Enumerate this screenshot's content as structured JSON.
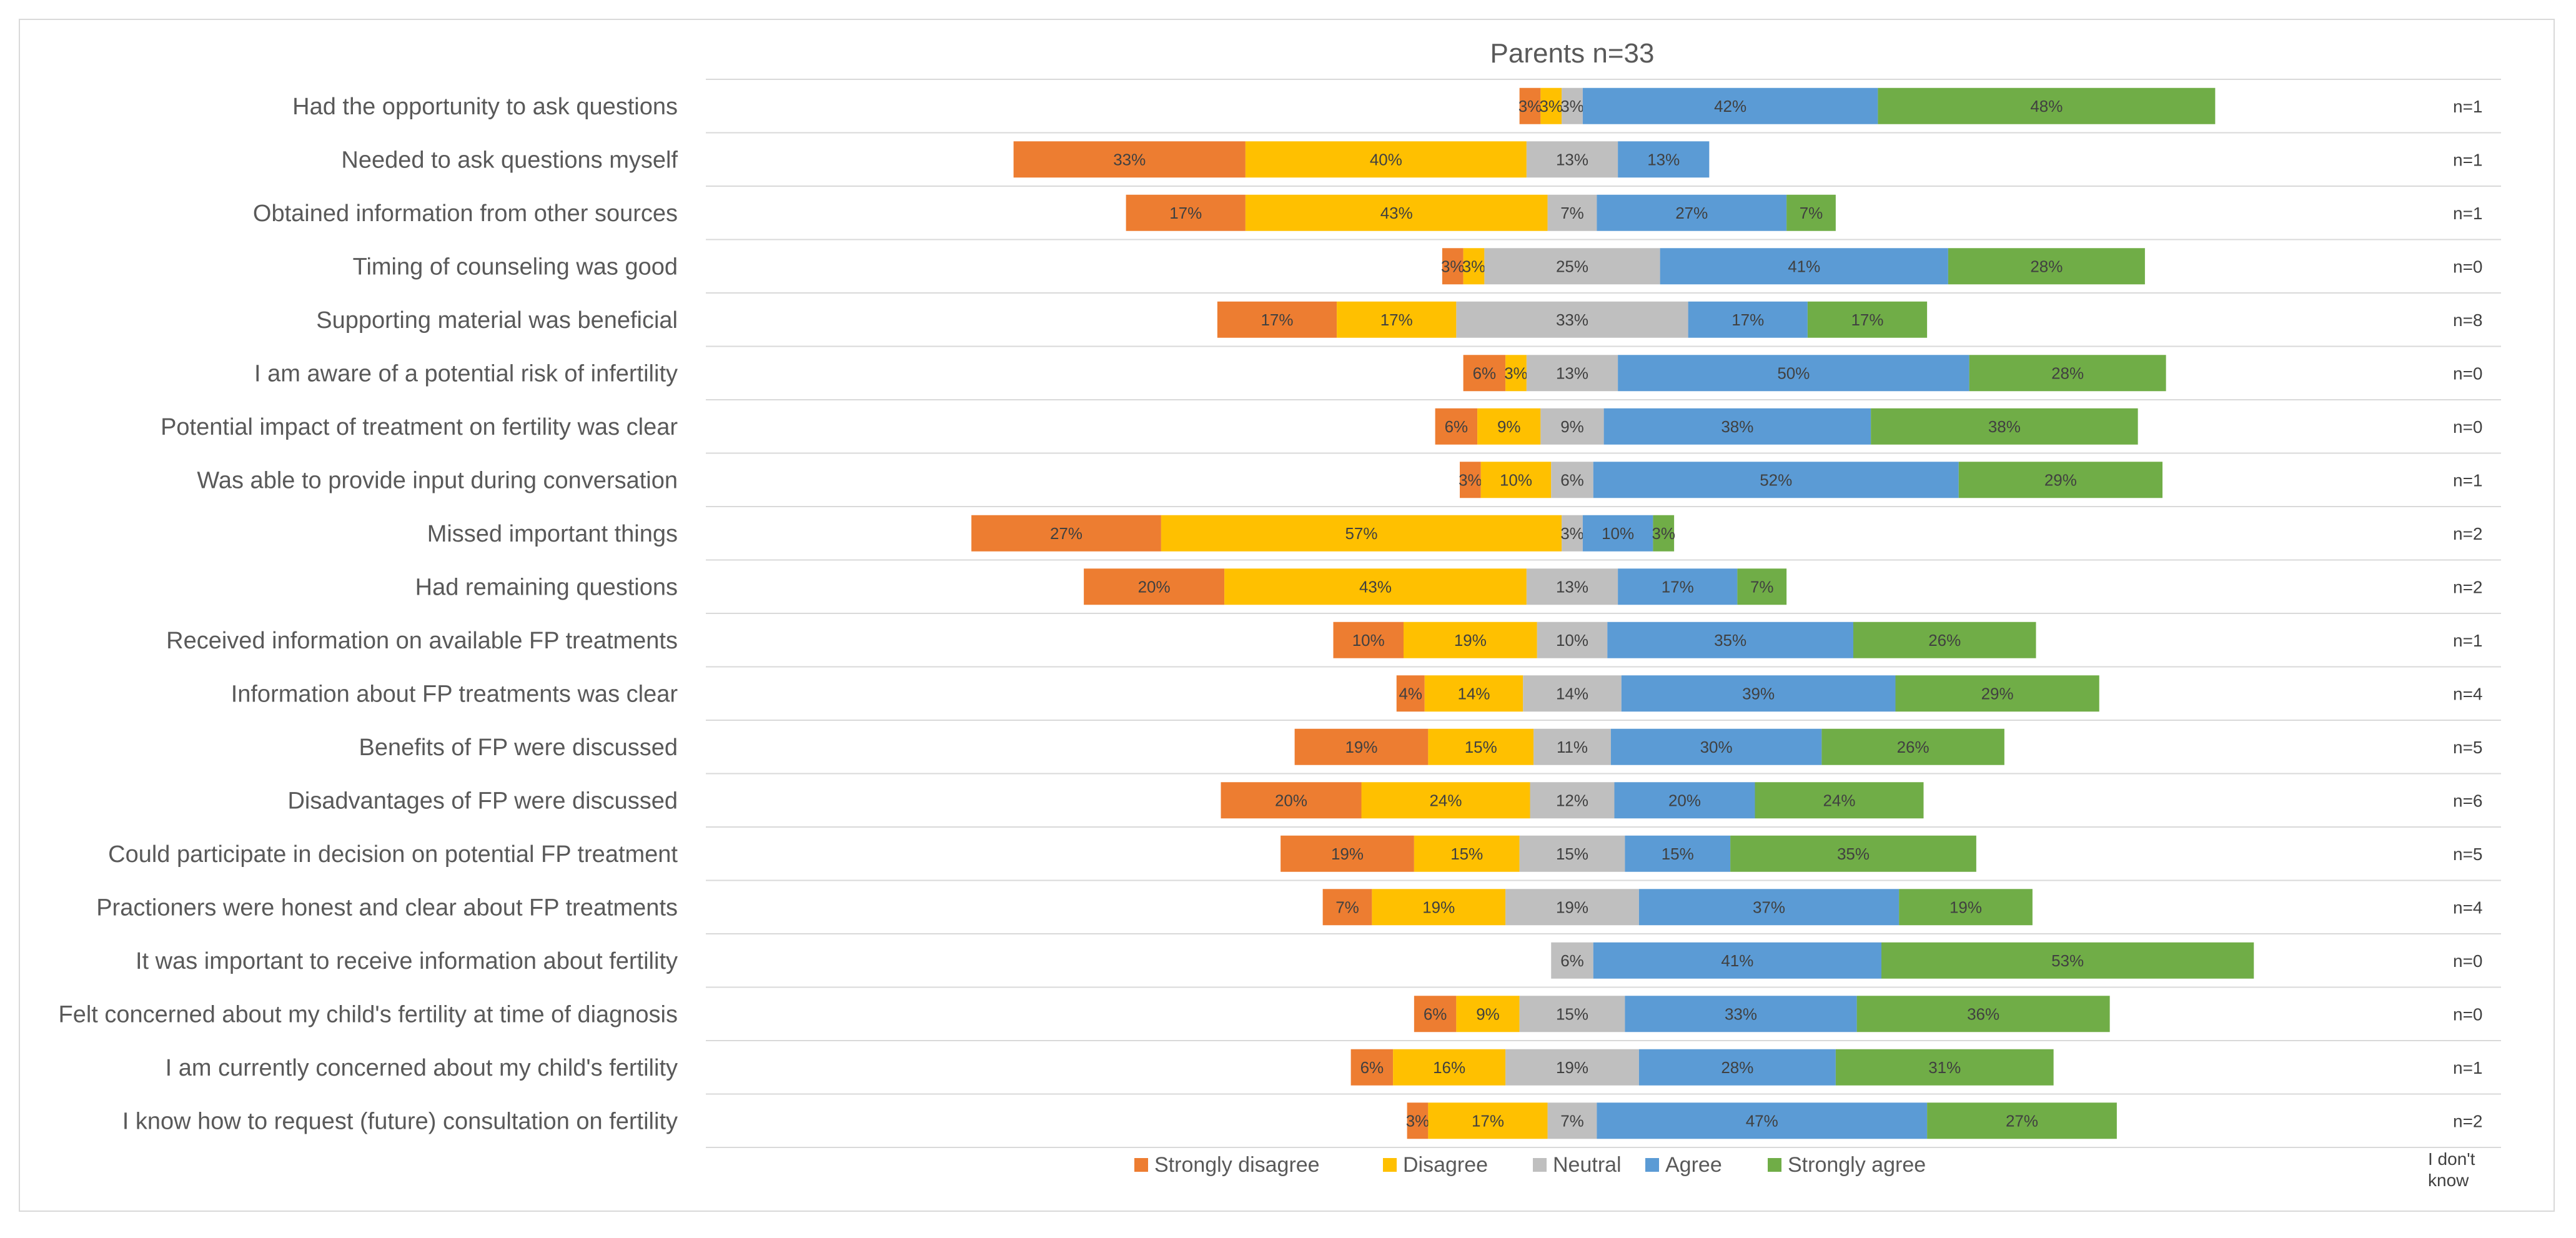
{
  "chart_data": {
    "type": "bar",
    "orientation": "horizontal-diverging-stacked",
    "title": "Parents n=33",
    "legend_position": "bottom",
    "grid": "horizontal row lines",
    "series": [
      {
        "name": "Strongly disagree",
        "color": "#ED7D31"
      },
      {
        "name": "Disagree",
        "color": "#FFC000"
      },
      {
        "name": "Neutral",
        "color": "#BFBFBF"
      },
      {
        "name": "Agree",
        "color": "#5B9BD5"
      },
      {
        "name": "Strongly agree",
        "color": "#70AD47"
      }
    ],
    "extra_column_label": "I don't know",
    "categories": [
      {
        "label": "Had the opportunity to ask questions",
        "values": [
          3,
          3,
          3,
          42,
          48
        ],
        "n": "n=1"
      },
      {
        "label": "Needed to ask questions myself",
        "values": [
          33,
          40,
          13,
          13,
          0
        ],
        "n": "n=1"
      },
      {
        "label": "Obtained information from other sources",
        "values": [
          17,
          43,
          7,
          27,
          7
        ],
        "n": "n=1"
      },
      {
        "label": "Timing of counseling was good",
        "values": [
          3,
          3,
          25,
          41,
          28
        ],
        "n": "n=0"
      },
      {
        "label": "Supporting material was beneficial",
        "values": [
          17,
          17,
          33,
          17,
          17
        ],
        "n": "n=8"
      },
      {
        "label": "I am aware of a potential risk of infertility",
        "values": [
          6,
          3,
          13,
          50,
          28
        ],
        "n": "n=0"
      },
      {
        "label": "Potential impact of treatment on fertility was clear",
        "values": [
          6,
          9,
          9,
          38,
          38
        ],
        "n": "n=0"
      },
      {
        "label": "Was able to provide input during conversation",
        "values": [
          3,
          10,
          6,
          52,
          29
        ],
        "n": "n=1"
      },
      {
        "label": "Missed important things",
        "values": [
          27,
          57,
          3,
          10,
          3
        ],
        "n": "n=2"
      },
      {
        "label": "Had remaining questions",
        "values": [
          20,
          43,
          13,
          17,
          7
        ],
        "n": "n=2"
      },
      {
        "label": "Received information on available FP treatments",
        "values": [
          10,
          19,
          10,
          35,
          26
        ],
        "n": "n=1"
      },
      {
        "label": "Information about FP treatments was clear",
        "values": [
          4,
          14,
          14,
          39,
          29
        ],
        "n": "n=4"
      },
      {
        "label": "Benefits of FP were discussed",
        "values": [
          19,
          15,
          11,
          30,
          26
        ],
        "n": "n=5"
      },
      {
        "label": "Disadvantages of FP were discussed",
        "values": [
          20,
          24,
          12,
          20,
          24
        ],
        "n": "n=6"
      },
      {
        "label": "Could participate in decision on potential FP treatment",
        "values": [
          19,
          15,
          15,
          15,
          35
        ],
        "n": "n=5"
      },
      {
        "label": "Practioners were honest and clear about FP treatments",
        "values": [
          7,
          19,
          19,
          37,
          19
        ],
        "n": "n=4"
      },
      {
        "label": "It was important to receive information about fertility",
        "values": [
          0,
          0,
          6,
          41,
          53
        ],
        "n": "n=0"
      },
      {
        "label": "Felt concerned about my child's fertility at time of diagnosis",
        "values": [
          6,
          9,
          15,
          33,
          36
        ],
        "n": "n=0"
      },
      {
        "label": "I am currently concerned about my child's fertility",
        "values": [
          6,
          16,
          19,
          28,
          31
        ],
        "n": "n=1"
      },
      {
        "label": "I know how to request (future) consultation on fertility",
        "values": [
          3,
          17,
          7,
          47,
          27
        ],
        "n": "n=2"
      }
    ]
  }
}
